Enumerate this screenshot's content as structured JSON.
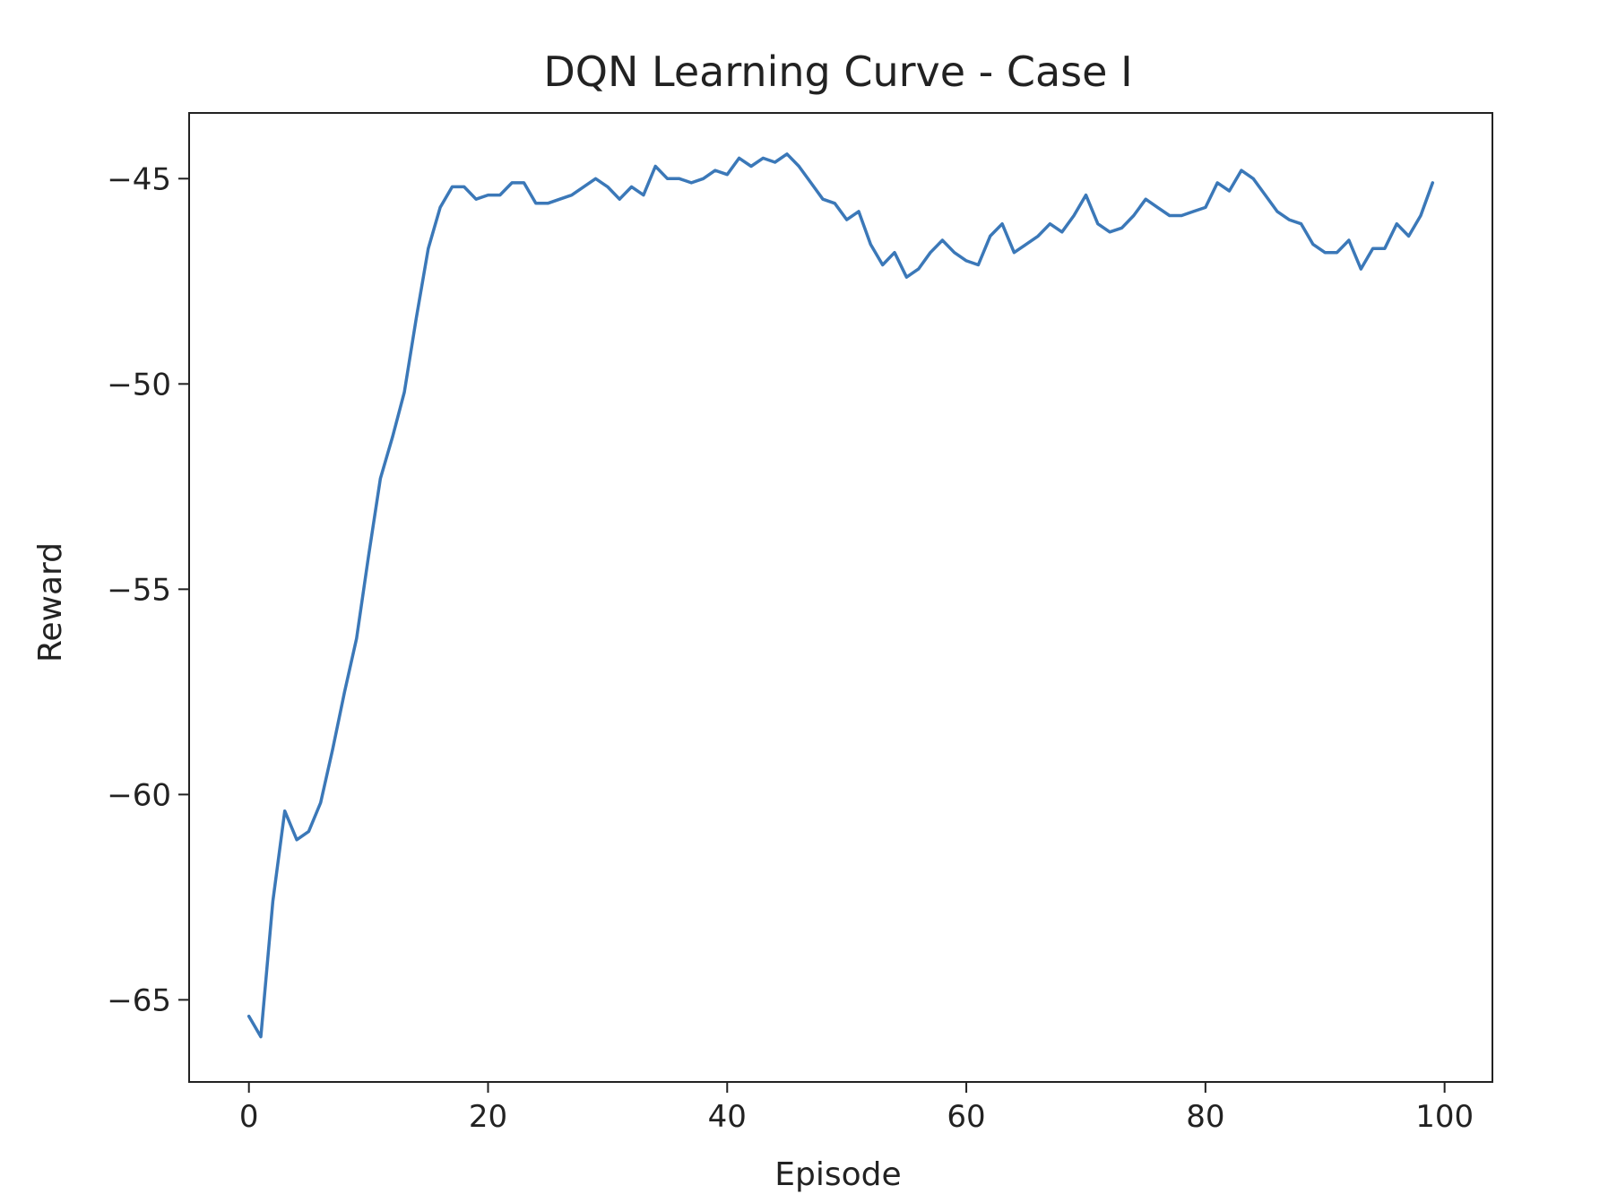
{
  "chart_data": {
    "type": "line",
    "title": "DQN Learning Curve - Case I",
    "xlabel": "Episode",
    "ylabel": "Reward",
    "xlim": [
      -5,
      104
    ],
    "ylim": [
      -67,
      -43.4
    ],
    "x_ticks": [
      0,
      20,
      40,
      60,
      80,
      100
    ],
    "x_tick_labels": [
      "0",
      "20",
      "40",
      "60",
      "80",
      "100"
    ],
    "y_ticks": [
      -65,
      -60,
      -55,
      -50,
      -45
    ],
    "y_tick_labels": [
      "−65",
      "−60",
      "−55",
      "−50",
      "−45"
    ],
    "grid": false,
    "line_color": "#3b78b8",
    "series": [
      {
        "x": [
          0,
          1,
          2,
          3,
          4,
          5,
          6,
          7,
          8,
          9,
          10,
          11,
          12,
          13,
          14,
          15,
          16,
          17,
          18,
          19,
          20,
          21,
          22,
          23,
          24,
          25,
          26,
          27,
          28,
          29,
          30,
          31,
          32,
          33,
          34,
          35,
          36,
          37,
          38,
          39,
          40,
          41,
          42,
          43,
          44,
          45,
          46,
          47,
          48,
          49,
          50,
          51,
          52,
          53,
          54,
          55,
          56,
          57,
          58,
          59,
          60,
          61,
          62,
          63,
          64,
          65,
          66,
          67,
          68,
          69,
          70,
          71,
          72,
          73,
          74,
          75,
          76,
          77,
          78,
          79,
          80,
          81,
          82,
          83,
          84,
          85,
          86,
          87,
          88,
          89,
          90,
          91,
          92,
          93,
          94,
          95,
          96,
          97,
          98,
          99
        ],
        "values": [
          -65.4,
          -65.9,
          -62.6,
          -60.4,
          -61.1,
          -60.9,
          -60.2,
          -58.9,
          -57.5,
          -56.2,
          -54.2,
          -52.3,
          -51.3,
          -50.2,
          -48.4,
          -46.7,
          -45.7,
          -45.2,
          -45.2,
          -45.5,
          -45.4,
          -45.4,
          -45.1,
          -45.1,
          -45.6,
          -45.6,
          -45.5,
          -45.4,
          -45.2,
          -45.0,
          -45.2,
          -45.5,
          -45.2,
          -45.4,
          -44.7,
          -45.0,
          -45.0,
          -45.1,
          -45.0,
          -44.8,
          -44.9,
          -44.5,
          -44.7,
          -44.5,
          -44.6,
          -44.4,
          -44.7,
          -45.1,
          -45.5,
          -45.6,
          -46.0,
          -45.8,
          -46.6,
          -47.1,
          -46.8,
          -47.4,
          -47.2,
          -46.8,
          -46.5,
          -46.8,
          -47.0,
          -47.1,
          -46.4,
          -46.1,
          -46.8,
          -46.6,
          -46.4,
          -46.1,
          -46.3,
          -45.9,
          -45.4,
          -46.1,
          -46.3,
          -46.2,
          -45.9,
          -45.5,
          -45.7,
          -45.9,
          -45.9,
          -45.8,
          -45.7,
          -45.1,
          -45.3,
          -44.8,
          -45.0,
          -45.4,
          -45.8,
          -46.0,
          -46.1,
          -46.6,
          -46.8,
          -46.8,
          -46.5,
          -47.2,
          -46.7,
          -46.7,
          -46.1,
          -46.4,
          -45.9,
          -45.1
        ]
      }
    ]
  }
}
